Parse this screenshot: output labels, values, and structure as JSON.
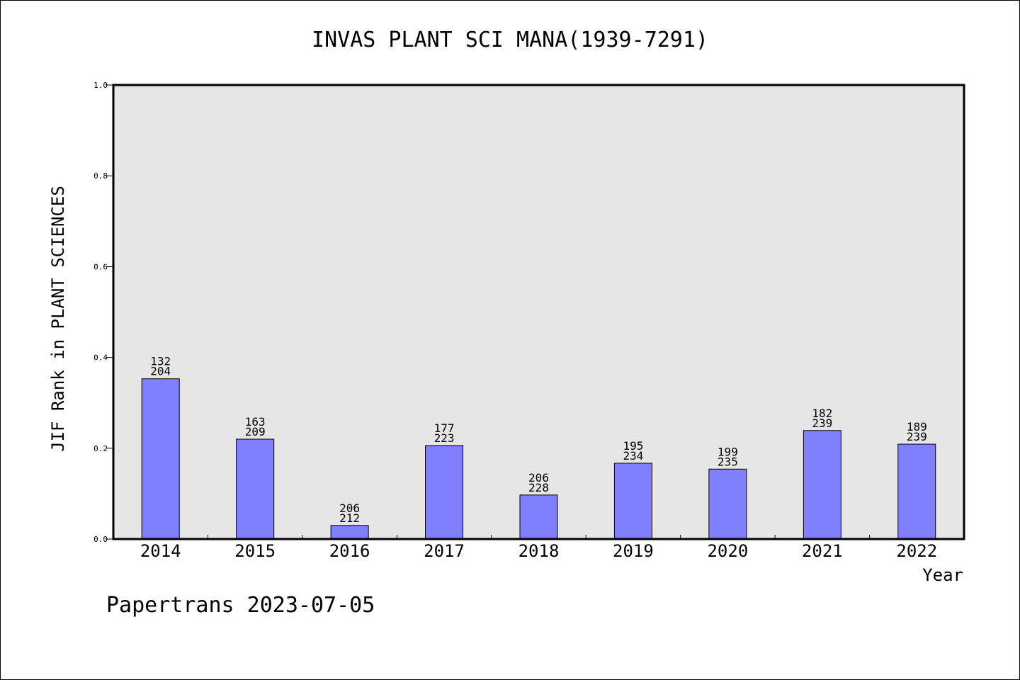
{
  "chart_data": {
    "type": "bar",
    "title": "INVAS PLANT SCI MANA(1939-7291)",
    "xlabel": "Year",
    "ylabel": "JIF Rank in PLANT SCIENCES",
    "ylim": [
      0,
      1.0
    ],
    "yticks": [
      "0.0",
      "0.2",
      "0.4",
      "0.6",
      "0.8",
      "1.0"
    ],
    "categories": [
      "2014",
      "2015",
      "2016",
      "2017",
      "2018",
      "2019",
      "2020",
      "2021",
      "2022"
    ],
    "values": [
      0.353,
      0.22,
      0.03,
      0.206,
      0.097,
      0.167,
      0.154,
      0.239,
      0.209
    ],
    "rank_labels": [
      [
        "132",
        "204"
      ],
      [
        "163",
        "209"
      ],
      [
        "206",
        "212"
      ],
      [
        "177",
        "223"
      ],
      [
        "206",
        "228"
      ],
      [
        "195",
        "234"
      ],
      [
        "199",
        "235"
      ],
      [
        "182",
        "239"
      ],
      [
        "189",
        "239"
      ]
    ],
    "grid": false,
    "colors": {
      "bar": "#8080ff",
      "plot_bg": "#e6e6e6",
      "axis": "#000000"
    }
  },
  "footer": {
    "credit": "Papertrans 2023-07-05"
  }
}
